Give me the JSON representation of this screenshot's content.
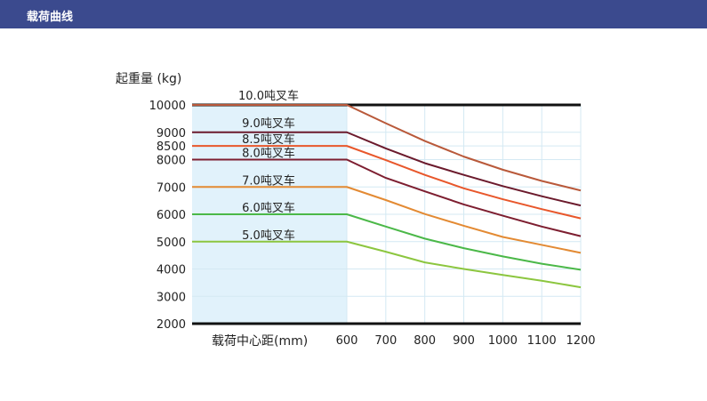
{
  "header": {
    "title": "载荷曲线"
  },
  "chart_data": {
    "type": "line",
    "title": "",
    "ylabel": "起重量 (kg)",
    "xlabel": "载荷中心距(mm)",
    "x": [
      600,
      700,
      800,
      900,
      1000,
      1100,
      1200
    ],
    "xticks": [
      "600",
      "700",
      "800",
      "900",
      "1000",
      "1100",
      "1200"
    ],
    "yticks": [
      "10000",
      "9000",
      "8500",
      "8000",
      "7000",
      "6000",
      "5000",
      "4000",
      "3000",
      "2000"
    ],
    "ytick_values": [
      10000,
      9000,
      8500,
      8000,
      7000,
      6000,
      5000,
      4000,
      3000,
      2000
    ],
    "ylim": [
      2000,
      10000
    ],
    "xlim": [
      600,
      1200
    ],
    "grid": true,
    "series": [
      {
        "name": "10.0吨叉车",
        "color": "#b9593a",
        "values": [
          10000,
          9330,
          8680,
          8110,
          7630,
          7220,
          6870
        ]
      },
      {
        "name": "9.0吨叉车",
        "color": "#6b1a2c",
        "values": [
          9000,
          8410,
          7870,
          7440,
          7030,
          6660,
          6320
        ]
      },
      {
        "name": "8.5吨叉车",
        "color": "#e8572b",
        "values": [
          8500,
          7980,
          7440,
          6950,
          6550,
          6190,
          5850
        ]
      },
      {
        "name": "8.0吨叉车",
        "color": "#7d1e30",
        "values": [
          8000,
          7330,
          6840,
          6360,
          5950,
          5550,
          5200
        ]
      },
      {
        "name": "7.0吨叉车",
        "color": "#e38a33",
        "values": [
          7000,
          6520,
          6010,
          5580,
          5170,
          4880,
          4590
        ]
      },
      {
        "name": "6.0吨叉车",
        "color": "#4bb848",
        "values": [
          6000,
          5550,
          5110,
          4760,
          4460,
          4190,
          3970
        ]
      },
      {
        "name": "5.0吨叉车",
        "color": "#8cc63f",
        "values": [
          5000,
          4630,
          4240,
          4000,
          3780,
          3570,
          3330
        ]
      }
    ]
  }
}
